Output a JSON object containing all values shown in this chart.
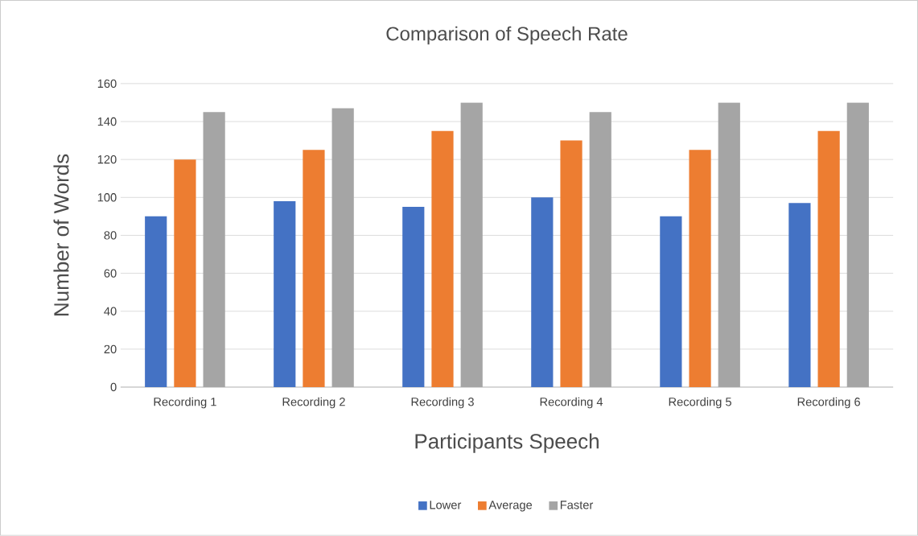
{
  "chart_data": {
    "type": "bar",
    "title": "Comparison of Speech Rate",
    "xlabel": "Participants Speech",
    "ylabel": "Number of Words",
    "categories": [
      "Recording 1",
      "Recording 2",
      "Recording 3",
      "Recording 4",
      "Recording 5",
      "Recording 6"
    ],
    "series": [
      {
        "name": "Lower",
        "color": "#4472c4",
        "values": [
          90,
          98,
          95,
          100,
          90,
          97
        ]
      },
      {
        "name": "Average",
        "color": "#ed7d31",
        "values": [
          120,
          125,
          135,
          130,
          125,
          135
        ]
      },
      {
        "name": "Faster",
        "color": "#a5a5a5",
        "values": [
          145,
          147,
          150,
          145,
          150,
          150
        ]
      }
    ],
    "ylim": [
      0,
      160
    ],
    "yticks": [
      0,
      20,
      40,
      60,
      80,
      100,
      120,
      140,
      160
    ],
    "grid": "y",
    "legend": "bottom"
  }
}
